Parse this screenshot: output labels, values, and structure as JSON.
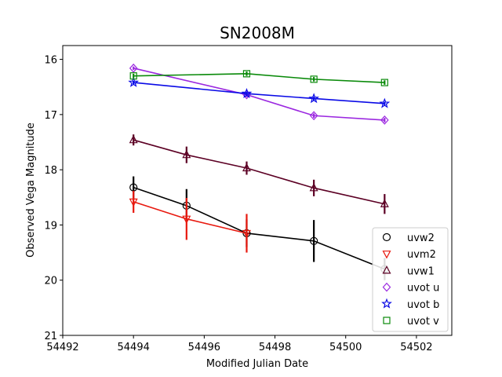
{
  "chart_data": {
    "type": "line",
    "title": "SN2008M",
    "xlabel": "Modified Julian Date",
    "ylabel": "Observed Vega Magnitude",
    "xlim": [
      54492,
      54503
    ],
    "ylim": [
      21,
      15.75
    ],
    "y_inverted": true,
    "xticks": [
      54492,
      54494,
      54496,
      54498,
      54500,
      54502
    ],
    "yticks": [
      16,
      17,
      18,
      19,
      20,
      21
    ],
    "grid": false,
    "legend_position": "lower-right",
    "series": [
      {
        "name": "uvw2",
        "color": "#000000",
        "marker": "circle",
        "x": [
          54494.0,
          54495.5,
          54497.2,
          54499.1,
          54501.1
        ],
        "y": [
          18.32,
          18.65,
          19.15,
          19.29,
          19.8
        ],
        "err": [
          0.2,
          0.3,
          0.25,
          0.38,
          0.2
        ]
      },
      {
        "name": "uvm2",
        "color": "#e8180e",
        "marker": "triangle-down",
        "x": [
          54494.0,
          54495.5,
          54497.2
        ],
        "y": [
          18.58,
          18.89,
          19.15
        ],
        "err": [
          0.2,
          0.38,
          0.35
        ]
      },
      {
        "name": "uvw1",
        "color": "#5c0024",
        "marker": "triangle-up",
        "x": [
          54494.0,
          54495.5,
          54497.2,
          54499.1,
          54501.1
        ],
        "y": [
          17.46,
          17.73,
          17.97,
          18.33,
          18.62
        ],
        "err": [
          0.1,
          0.15,
          0.12,
          0.15,
          0.18
        ]
      },
      {
        "name": "uvot u",
        "color": "#9b28e0",
        "marker": "diamond",
        "x": [
          54494.0,
          54497.2,
          54499.1,
          54501.1
        ],
        "y": [
          16.16,
          16.64,
          17.02,
          17.1
        ],
        "err": [
          0.03,
          0.04,
          0.04,
          0.04
        ]
      },
      {
        "name": "uvot b",
        "color": "#0a0ae6",
        "marker": "star",
        "x": [
          54494.0,
          54497.2,
          54499.1,
          54501.1
        ],
        "y": [
          16.42,
          16.62,
          16.71,
          16.8
        ],
        "err": [
          0.03,
          0.03,
          0.03,
          0.03
        ]
      },
      {
        "name": "uvot v",
        "color": "#0a8a0a",
        "marker": "square",
        "x": [
          54494.0,
          54497.2,
          54499.1,
          54501.1
        ],
        "y": [
          16.3,
          16.26,
          16.36,
          16.42
        ],
        "err": [
          0.04,
          0.04,
          0.04,
          0.04
        ]
      }
    ]
  }
}
